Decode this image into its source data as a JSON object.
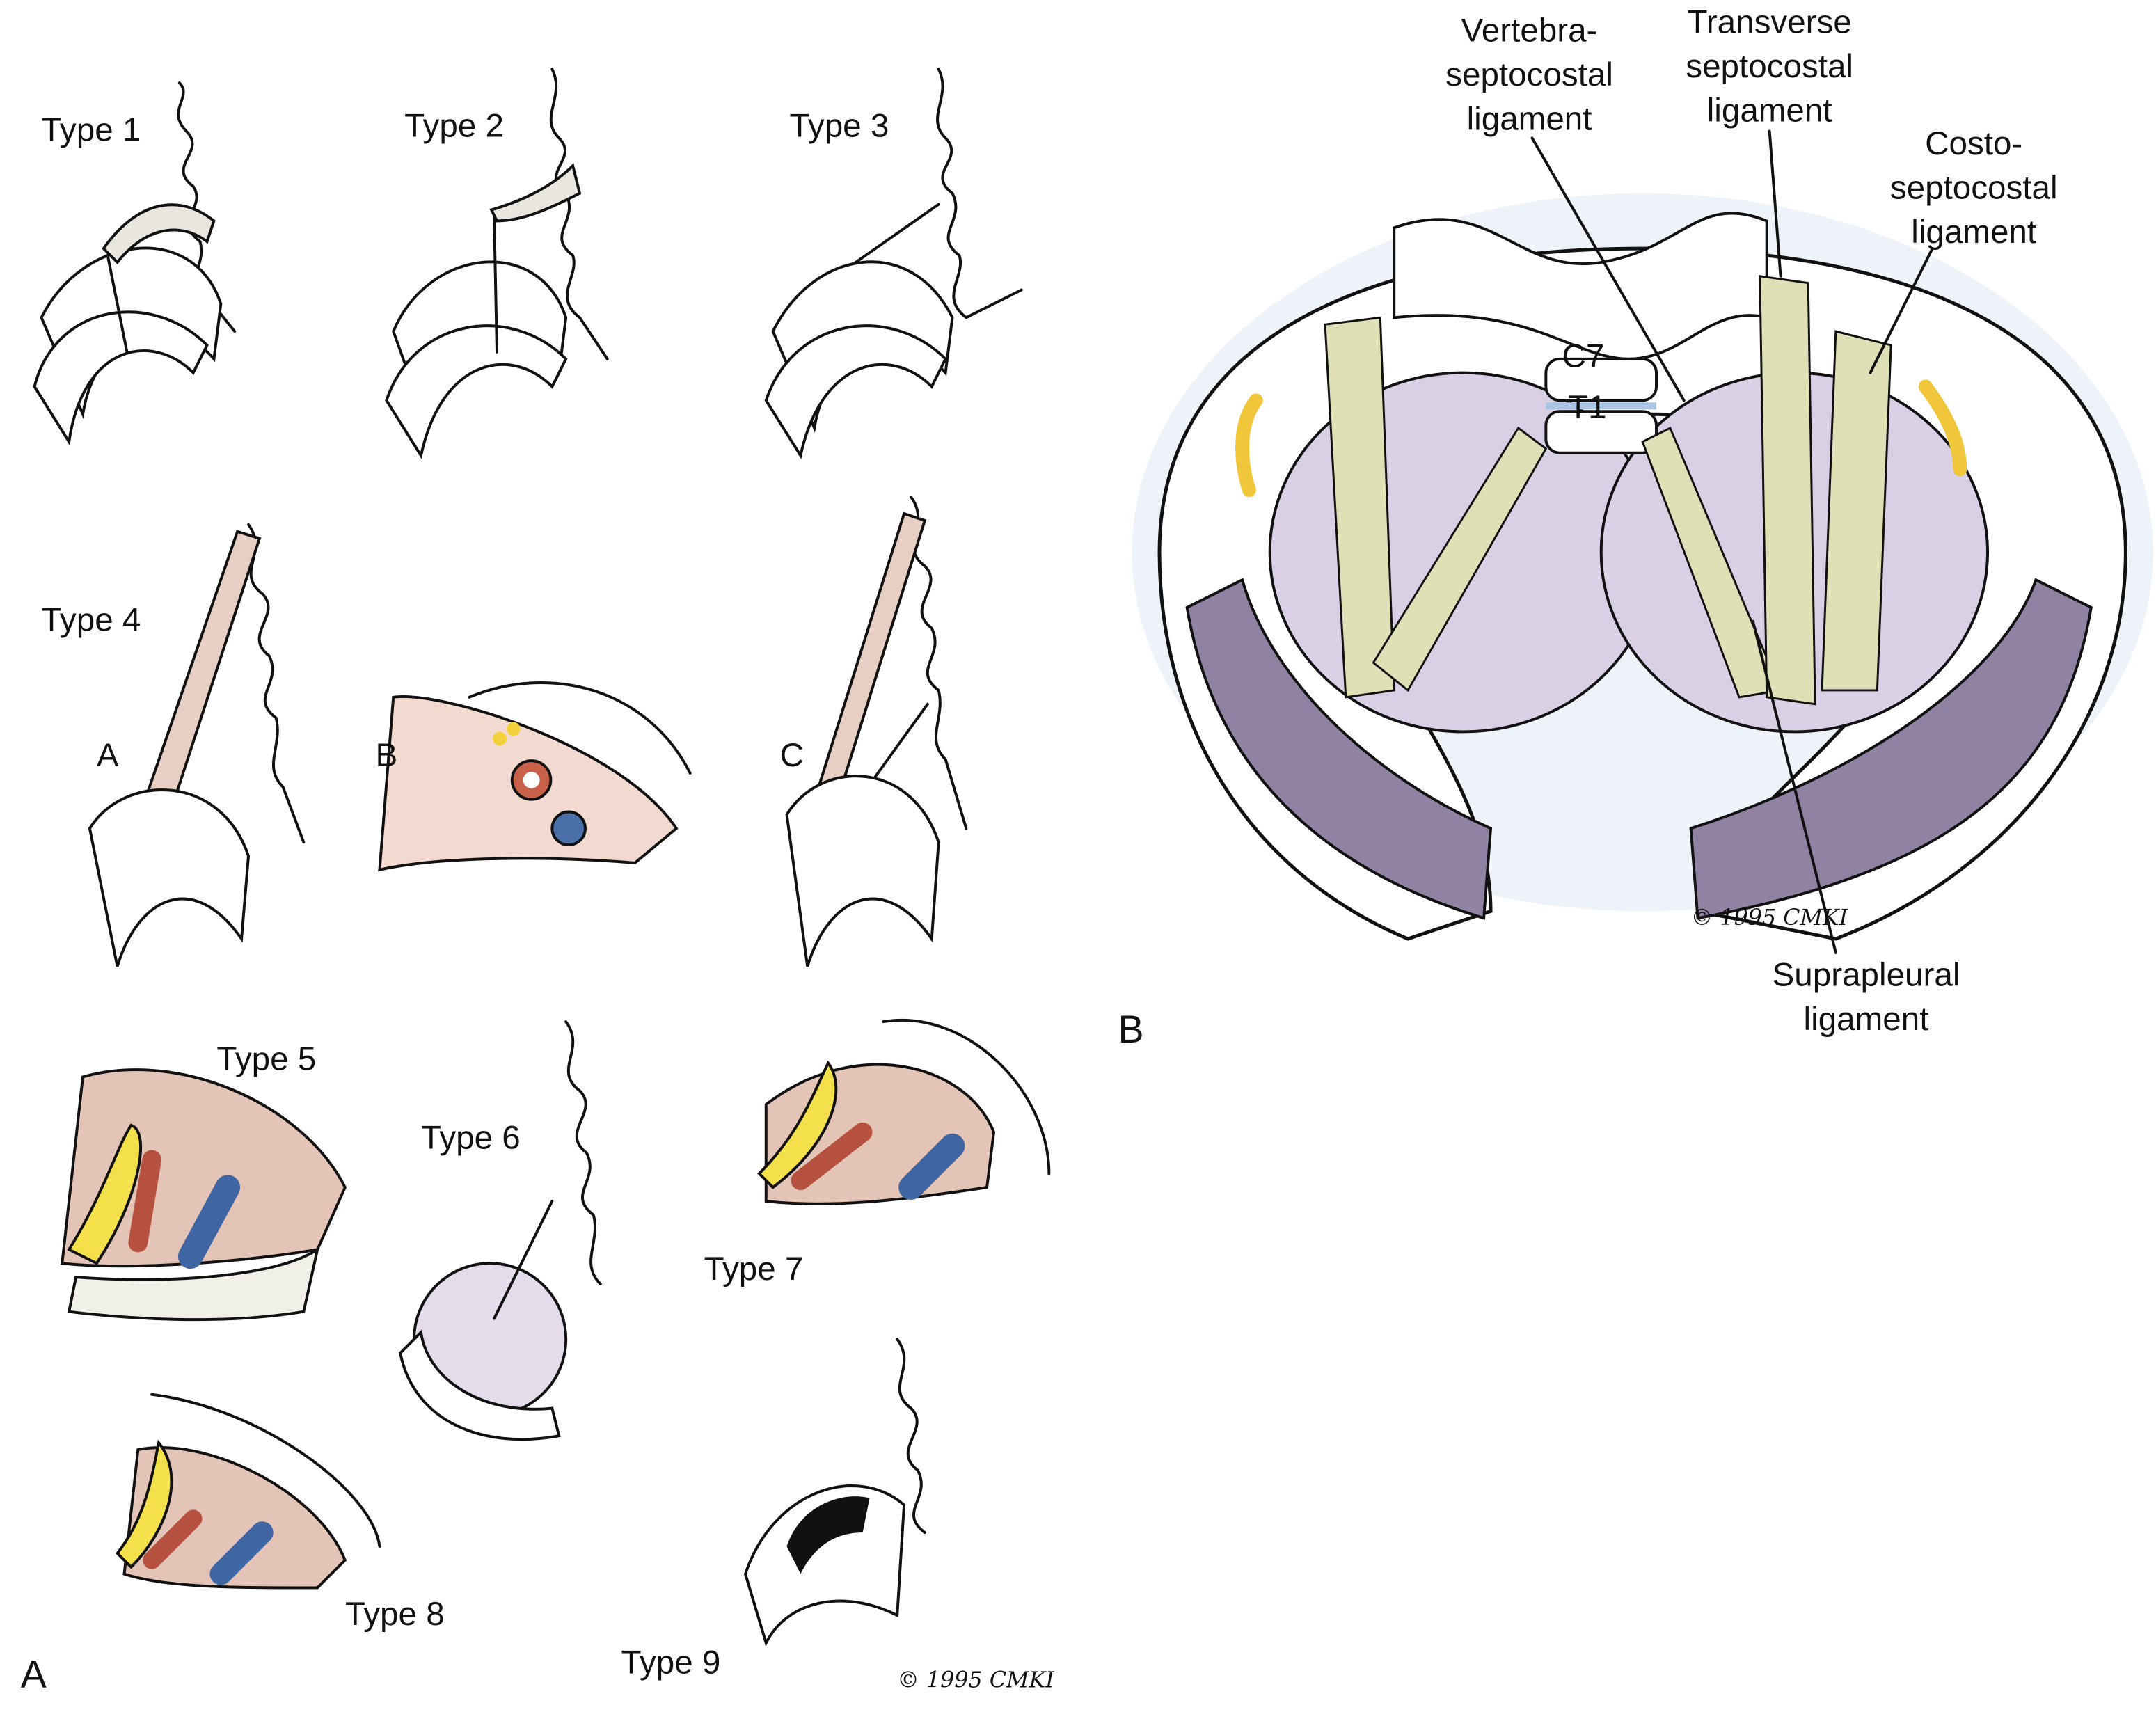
{
  "panel_a": {
    "label": "A",
    "types": [
      "Type 1",
      "Type 2",
      "Type 3",
      "Type 4",
      "Type 5",
      "Type 6",
      "Type 7",
      "Type 8",
      "Type 9"
    ],
    "type4_views": [
      "A",
      "B",
      "C"
    ],
    "signature": "© 1995 CMKI"
  },
  "panel_b": {
    "label": "B",
    "vertebrae": [
      "C7",
      "T1"
    ],
    "ligaments": [
      {
        "lines": [
          "Vertebra-",
          "septocostal",
          "ligament"
        ]
      },
      {
        "lines": [
          "Transverse",
          "septocostal",
          "ligament"
        ]
      },
      {
        "lines": [
          "Costo-",
          "septocostal",
          "ligament"
        ]
      },
      {
        "lines": [
          "Suprapleural",
          "ligament"
        ]
      }
    ],
    "signature": "© 1995 CMKI"
  }
}
